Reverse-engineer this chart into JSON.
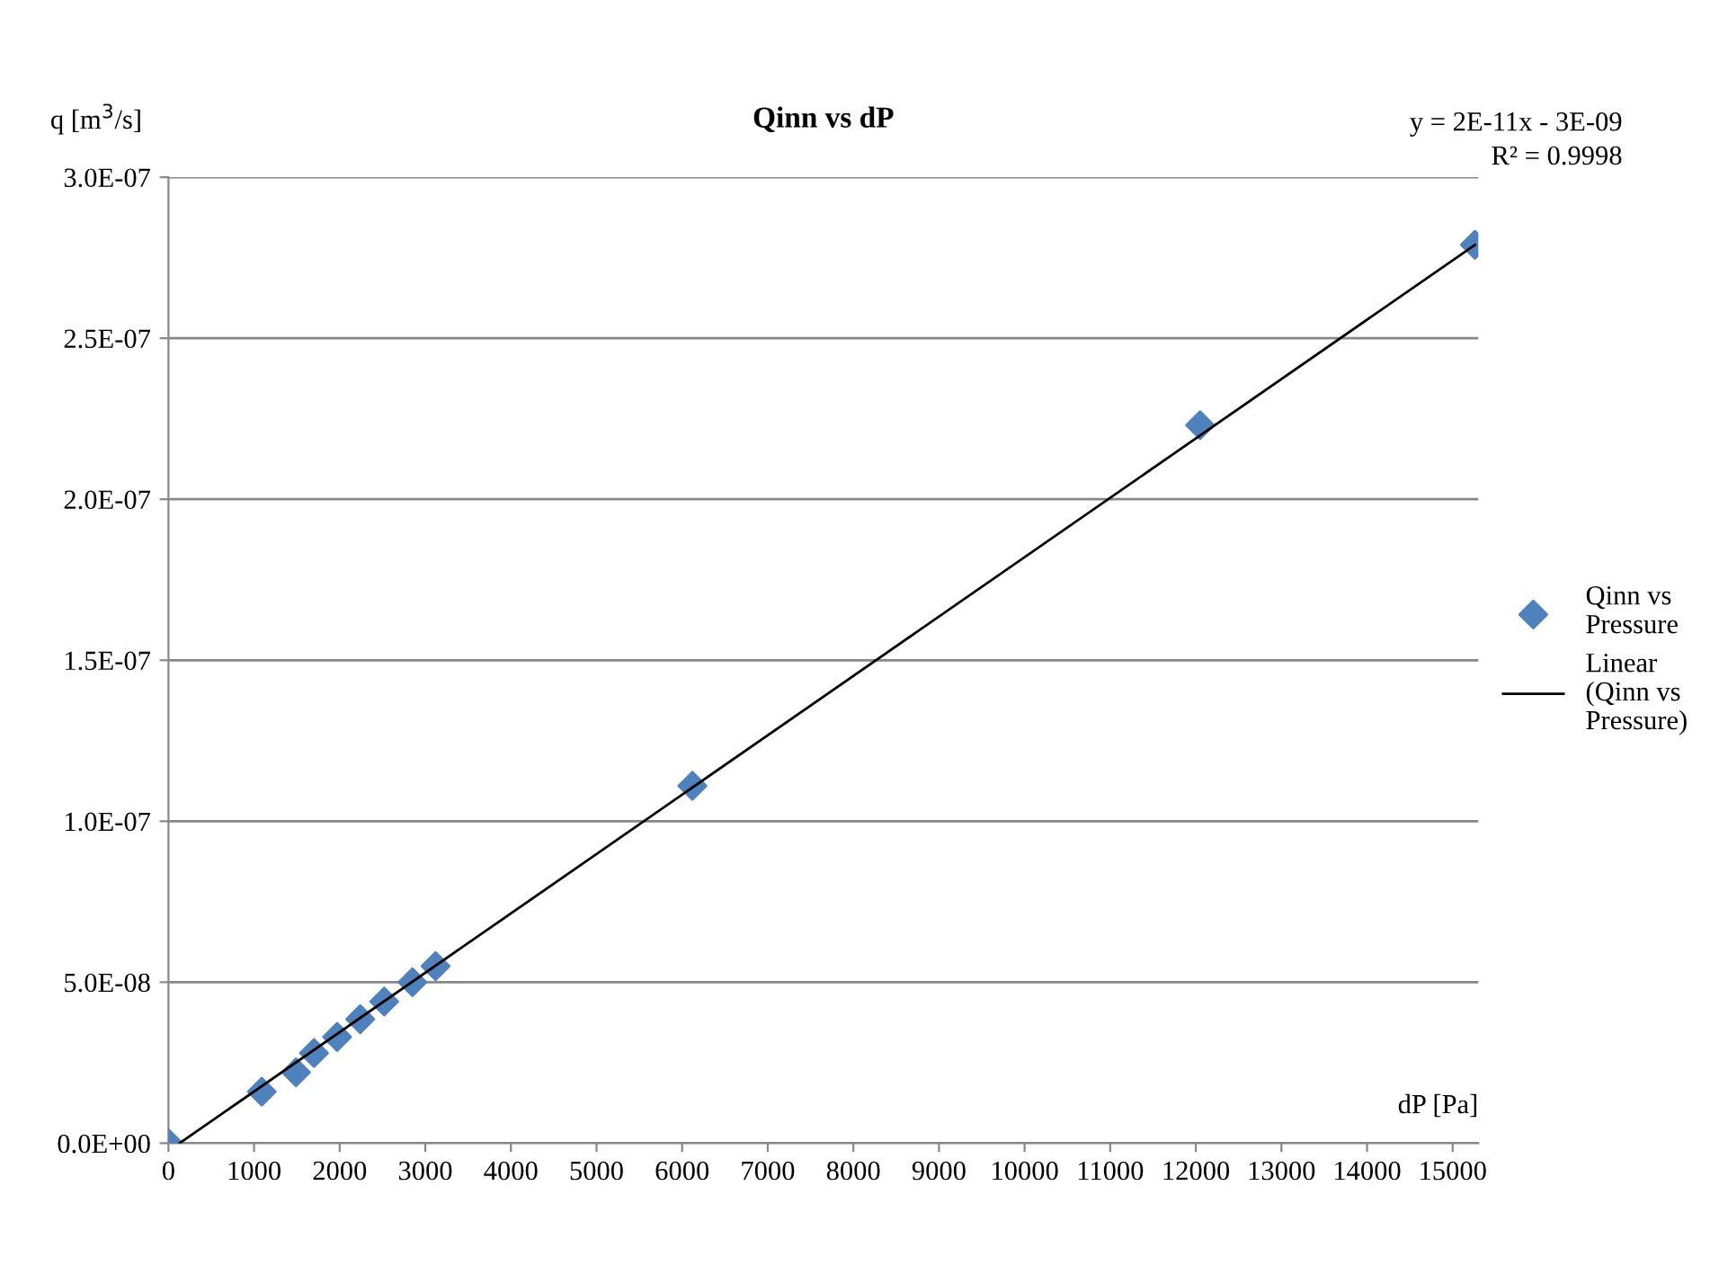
{
  "chart_data": {
    "type": "scatter",
    "title": "Qinn vs dP",
    "xlabel": "dP [Pa]",
    "ylabel": "q [m$^{3}$/s]",
    "x": [
      0,
      1090,
      1490,
      1700,
      1970,
      2240,
      2520,
      2850,
      3120,
      6120,
      12050,
      15260
    ],
    "series": [
      {
        "name": "Qinn vs\nPressure",
        "color": "#4f81bd",
        "marker": "diamond",
        "values": [
          0,
          1.6e-08,
          2.2e-08,
          2.8e-08,
          3.3e-08,
          3.85e-08,
          4.4e-08,
          5e-08,
          5.5e-08,
          1.11e-07,
          2.23e-07,
          2.79e-07
        ]
      },
      {
        "name": "Linear\n(Qinn vs\nPressure)",
        "type": "line",
        "color": "#000000",
        "marker": "none",
        "line_style": "solid",
        "x": [
          130,
          15260
        ],
        "values": [
          0,
          2.79e-07
        ]
      }
    ],
    "annotations": [
      "y = 2E-11x - 3E-09",
      "R² = 0.9998"
    ],
    "xlim": [
      0,
      15300
    ],
    "xticks": [
      0,
      1000,
      2000,
      3000,
      4000,
      5000,
      6000,
      7000,
      8000,
      9000,
      10000,
      11000,
      12000,
      13000,
      14000,
      15000
    ],
    "ylim": [
      0,
      3e-07
    ],
    "yticks": [
      {
        "value": 0,
        "label": "0.0E+00"
      },
      {
        "value": 5e-08,
        "label": "5.0E-08"
      },
      {
        "value": 1e-07,
        "label": "1.0E-07"
      },
      {
        "value": 1.5e-07,
        "label": "1.5E-07"
      },
      {
        "value": 2e-07,
        "label": "2.0E-07"
      },
      {
        "value": 2.5e-07,
        "label": "2.5E-07"
      },
      {
        "value": 3e-07,
        "label": "3.0E-07"
      }
    ],
    "grid": "y",
    "legend": "right"
  }
}
